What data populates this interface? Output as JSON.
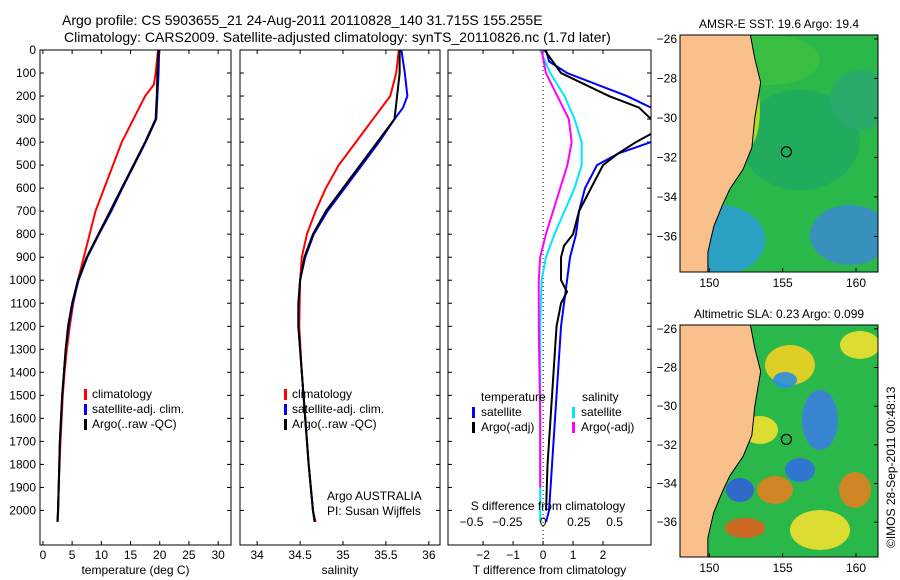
{
  "title_line1": "Argo profile: CS 5903655_21 24-Aug-2011 20110828_140 31.715S 155.255E",
  "title_line2": "Climatology: CARS2009. Satellite-adjusted climatology: synTS_20110826.nc (1.7d later)",
  "credit": "©IMOS 28-Sep-2011 00:48:13",
  "colors": {
    "climatology": "#ff0000",
    "satellite": "#0000ff",
    "argo": "#000000",
    "s_satellite": "#00e5ff",
    "s_argo": "#ff00ff",
    "land": "#f9c08c",
    "sea": "#22b84a"
  },
  "chart_data": [
    {
      "type": "line",
      "name": "temperature",
      "xlabel": "temperature (deg C)",
      "ylabel": "",
      "xlim": [
        -0.5,
        32.2
      ],
      "ylim": [
        2150,
        0
      ],
      "xticks": [
        0,
        5,
        10,
        15,
        20,
        25,
        30
      ],
      "yticks": [
        0,
        100,
        200,
        300,
        400,
        500,
        600,
        700,
        800,
        900,
        1000,
        1100,
        1200,
        1300,
        1400,
        1500,
        1600,
        1700,
        1800,
        1900,
        2000
      ],
      "legend": [
        "climatology",
        "satellite-adj. clim.",
        "Argo(..raw -QC)"
      ],
      "series": [
        {
          "name": "climatology",
          "color": "#ff0000",
          "depth": [
            0,
            100,
            150,
            200,
            300,
            400,
            500,
            600,
            700,
            800,
            900,
            1000,
            1100,
            1200,
            1300,
            1400,
            1500,
            1700,
            1900,
            2050
          ],
          "values": [
            19.7,
            19.3,
            19,
            17.5,
            15.5,
            13.5,
            12,
            10.5,
            9,
            8,
            7,
            6,
            5.2,
            4.6,
            4.1,
            3.7,
            3.4,
            3,
            2.7,
            2.5
          ]
        },
        {
          "name": "satellite-adj. clim.",
          "color": "#0000ff",
          "depth": [
            0,
            100,
            200,
            300,
            400,
            500,
            600,
            700,
            800,
            900,
            1000,
            1100,
            1200,
            1300,
            1400,
            1500,
            1600,
            1700,
            1800,
            1900,
            2000,
            2050
          ],
          "values": [
            19.9,
            19.8,
            19.6,
            19.4,
            17.6,
            15.6,
            13.6,
            11.7,
            9.6,
            7.6,
            6.1,
            5.1,
            4.4,
            3.9,
            3.6,
            3.3,
            3.1,
            2.9,
            2.8,
            2.7,
            2.6,
            2.5
          ]
        },
        {
          "name": "Argo(..raw -QC)",
          "color": "#000000",
          "depth": [
            0,
            100,
            200,
            300,
            400,
            500,
            600,
            700,
            800,
            900,
            1000,
            1100,
            1200,
            1300,
            1400,
            1500,
            1600,
            1700,
            1800,
            1900,
            2000,
            2050
          ],
          "values": [
            19.8,
            19.6,
            19.5,
            19.3,
            17.5,
            15.5,
            13.5,
            11.5,
            9.5,
            7.5,
            6,
            5,
            4.3,
            3.9,
            3.6,
            3.3,
            3.1,
            2.9,
            2.8,
            2.7,
            2.6,
            2.5
          ]
        }
      ]
    },
    {
      "type": "line",
      "name": "salinity",
      "xlabel": "salinity",
      "xlim": [
        33.8,
        36.13
      ],
      "ylim": [
        2150,
        0
      ],
      "xticks": [
        34,
        34.5,
        35,
        35.5,
        36
      ],
      "legend": [
        "climatology",
        "satellite-adj. clim.",
        "Argo(..raw -QC)"
      ],
      "annotation": [
        "Argo AUSTRALIA",
        "PI: Susan Wijffels"
      ],
      "series": [
        {
          "name": "climatology",
          "color": "#ff0000",
          "depth": [
            0,
            100,
            200,
            300,
            400,
            500,
            600,
            700,
            800,
            900,
            1000,
            1200,
            1400,
            1600,
            1800,
            2000,
            2050
          ],
          "values": [
            35.65,
            35.62,
            35.55,
            35.35,
            35.15,
            34.95,
            34.8,
            34.68,
            34.58,
            34.52,
            34.5,
            34.49,
            34.52,
            34.56,
            34.6,
            34.65,
            34.68
          ]
        },
        {
          "name": "satellite-adj. clim.",
          "color": "#0000ff",
          "depth": [
            0,
            100,
            200,
            250,
            300,
            400,
            500,
            600,
            700,
            800,
            900,
            1000,
            1100,
            1200,
            1400,
            1600,
            1800,
            2000,
            2050
          ],
          "values": [
            35.68,
            35.72,
            35.75,
            35.7,
            35.6,
            35.42,
            35.22,
            35.02,
            34.82,
            34.66,
            34.56,
            34.5,
            34.48,
            34.48,
            34.52,
            34.56,
            34.6,
            34.65,
            34.67
          ]
        },
        {
          "name": "Argo(..raw -QC)",
          "color": "#000000",
          "depth": [
            0,
            100,
            200,
            300,
            400,
            500,
            600,
            700,
            800,
            900,
            1000,
            1100,
            1200,
            1300,
            1400,
            1600,
            1800,
            2000,
            2050
          ],
          "values": [
            35.66,
            35.66,
            35.63,
            35.6,
            35.4,
            35.2,
            35.0,
            34.8,
            34.65,
            34.55,
            34.5,
            34.48,
            34.48,
            34.5,
            34.52,
            34.56,
            34.6,
            34.65,
            34.67
          ]
        }
      ]
    },
    {
      "type": "line",
      "name": "difference",
      "xlabel": "T difference from climatology",
      "x2label": "S difference from climatology",
      "xlim": [
        -3.17,
        3.6
      ],
      "ylim": [
        2150,
        0
      ],
      "xticks": [
        -2,
        -1,
        0,
        1,
        2
      ],
      "x2ticks": [
        -0.5,
        -0.25,
        0,
        0.25,
        0.5
      ],
      "legend_temperature": [
        "temperature",
        "satellite",
        "Argo(-adj)"
      ],
      "legend_salinity": [
        "salinity",
        "satellite",
        "Argo(-adj)"
      ],
      "series": [
        {
          "name": "T satellite",
          "color": "#0000ff",
          "unit": "T",
          "depth": [
            0,
            50,
            100,
            150,
            200,
            250,
            300,
            400,
            450,
            500,
            600,
            700,
            800,
            900,
            1000,
            1200,
            1400,
            1600,
            1800,
            2000,
            2050
          ],
          "values": [
            0.1,
            0.2,
            0.8,
            1.8,
            2.8,
            3.6,
            4.0,
            3.6,
            2.5,
            1.8,
            1.4,
            1.2,
            1.1,
            0.9,
            0.8,
            0.6,
            0.5,
            0.4,
            0.3,
            0.2,
            0.1
          ]
        },
        {
          "name": "T Argo(-adj)",
          "color": "#000000",
          "unit": "T",
          "depth": [
            0,
            100,
            200,
            250,
            300,
            350,
            400,
            450,
            500,
            600,
            700,
            800,
            850,
            900,
            1000,
            1050,
            1100,
            1200,
            1400,
            1600,
            1800,
            2000
          ],
          "values": [
            0.05,
            0.6,
            2.2,
            3.2,
            3.6,
            3.8,
            3.1,
            2.5,
            2.0,
            1.6,
            1.2,
            1.0,
            0.7,
            0.6,
            0.6,
            0.8,
            0.6,
            0.45,
            0.35,
            0.25,
            0.15,
            0.1
          ]
        },
        {
          "name": "S satellite",
          "color": "#00e5ff",
          "unit": "S",
          "depth": [
            0,
            100,
            200,
            300,
            400,
            500,
            600,
            700,
            800,
            900,
            1000,
            1200,
            2050
          ],
          "values": [
            -0.02,
            0.05,
            0.15,
            0.22,
            0.27,
            0.27,
            0.22,
            0.15,
            0.08,
            0.02,
            -0.01,
            -0.02,
            -0.02
          ]
        },
        {
          "name": "S Argo(-adj)",
          "color": "#ff00ff",
          "unit": "S",
          "depth": [
            0,
            100,
            200,
            300,
            400,
            500,
            600,
            700,
            800,
            900,
            1000,
            1200,
            1600,
            1900
          ],
          "values": [
            -0.01,
            0.02,
            0.1,
            0.18,
            0.2,
            0.17,
            0.12,
            0.07,
            0.02,
            -0.02,
            -0.03,
            -0.03,
            -0.02,
            -0.02
          ]
        }
      ]
    },
    {
      "type": "heatmap",
      "name": "sst-map",
      "title": "AMSR-E SST: 19.6 Argo: 19.4",
      "xticks": [
        150,
        155,
        160
      ],
      "yticks": [
        -26,
        -28,
        -30,
        -32,
        -34,
        -36
      ],
      "xlim": [
        148,
        161.5
      ],
      "ylim": [
        -37.8,
        -25.8
      ],
      "marker": {
        "lon": 155.255,
        "lat": -31.715
      }
    },
    {
      "type": "heatmap",
      "name": "sla-map",
      "title": "Altimetric SLA: 0.23 Argo: 0.099",
      "xticks": [
        150,
        155,
        160
      ],
      "yticks": [
        -26,
        -28,
        -30,
        -32,
        -34,
        -36
      ],
      "xlim": [
        148,
        161.5
      ],
      "ylim": [
        -37.8,
        -25.8
      ],
      "marker": {
        "lon": 155.255,
        "lat": -31.715
      }
    }
  ]
}
